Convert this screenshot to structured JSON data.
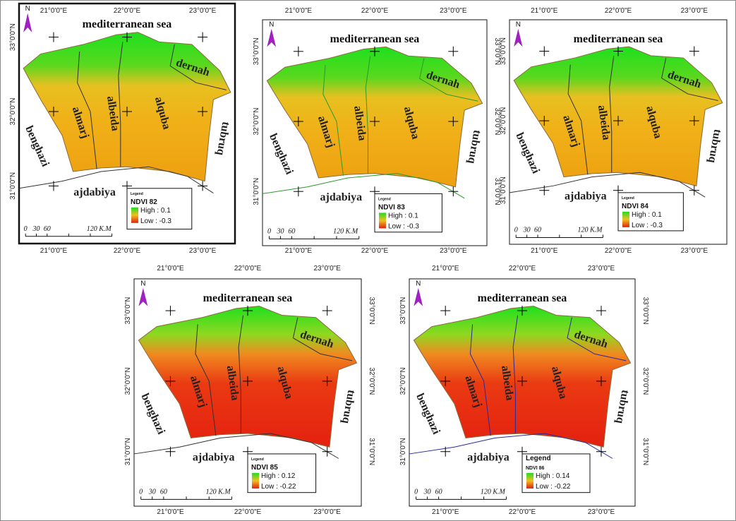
{
  "north": "N",
  "panels": [
    {
      "lon_top": [
        "21°0'0\"E",
        "22°0'0\"E",
        "23°0'0\"E"
      ],
      "lon_bottom": [
        "21°0'0\"E",
        "22°0'0\"E",
        "23°0'0\"E"
      ],
      "lat_left": [
        "33°0'0\"N",
        "32°0'0\"N",
        "31°0'0\"N"
      ],
      "lat_right": [],
      "sea": "mediterranean  sea",
      "regions": [
        "almarj",
        "albeida",
        "alquba",
        "dernah",
        "benghazi",
        "tubruq",
        "ajdabiya"
      ],
      "legend": {
        "heading": "Legend",
        "title": "NDVI 82",
        "high": "High : 0.1",
        "low": "Low : -0.3"
      },
      "scale": [
        "0",
        "30",
        "60",
        "120 K.M"
      ],
      "palette": "orange",
      "label_color": "#222222"
    },
    {
      "lon_top": [
        "21°0'0\"E",
        "22°0'0\"E",
        "23°0'0\"E"
      ],
      "lon_bottom": [
        "21°0'0\"E",
        "22°0'0\"E",
        "23°0'0\"E"
      ],
      "lat_left": [
        "33°0'0\"N",
        "32°0'0\"N",
        "31°0'0\"N"
      ],
      "lat_right": [
        "33°0'0\"N",
        "32°0'0\"N",
        "31°0'0\"N"
      ],
      "sea": "mediterranean  sea",
      "regions": [
        "almarj",
        "albeida",
        "alquba",
        "dernah",
        "benghazi",
        "tubruq",
        "ajdabiya"
      ],
      "legend": {
        "heading": "Legend",
        "title": "NDVI 83",
        "high": "High : 0.1",
        "low": "Low : -0.3"
      },
      "scale": [
        "0",
        "30",
        "60",
        "120 K.M"
      ],
      "palette": "orange",
      "label_color": "#e02020"
    },
    {
      "lon_top": [
        "21°0'0\"E",
        "22°0'0\"E",
        "23°0'0\"E"
      ],
      "lon_bottom": [
        "21°0'0\"E",
        "22°0'0\"E",
        "23°0'0\"E"
      ],
      "lat_left": [
        "33°0'0\"N",
        "32°0'0\"N",
        "31°0'0\"N"
      ],
      "lat_right": [],
      "sea": "mediterranean  sea",
      "regions": [
        "almarj",
        "albeida",
        "alquba",
        "dernah",
        "benghazi",
        "tubruq",
        "ajdabiya"
      ],
      "legend": {
        "heading": "Legend",
        "title": "NDVI 84",
        "high": "High : 0.1",
        "low": "Low : -0.3"
      },
      "scale": [
        "0",
        "30",
        "60",
        "120 K.M"
      ],
      "palette": "orange",
      "label_color": "#222222"
    },
    {
      "lon_top": [
        "21°0'0\"E",
        "22°0'0\"E",
        "23°0'0\"E"
      ],
      "lon_bottom": [
        "21°0'0\"E",
        "22°0'0\"E",
        "23°0'0\"E"
      ],
      "lat_left": [
        "33°0'0\"N",
        "32°0'0\"N",
        "31°0'0\"N"
      ],
      "lat_right": [
        "33°0'0\"N",
        "32°0'0\"N",
        "31°0'0\"N"
      ],
      "sea": "mediterranean  sea",
      "regions": [
        "almarj",
        "albeida",
        "alquba",
        "dernah",
        "benghazi",
        "tubruq",
        "ajdabiya"
      ],
      "legend": {
        "heading": "Legend",
        "title": "NDVI 85",
        "high": "High : 0.12",
        "low": "Low : -0.22"
      },
      "scale": [
        "0",
        "30",
        "60",
        "120 K.M"
      ],
      "palette": "red",
      "label_color": "#222222"
    },
    {
      "lon_top": [
        "21°0'0\"E",
        "22°0'0\"E",
        "23°0'0\"E"
      ],
      "lon_bottom": [
        "21°0'0\"E",
        "22°0'0\"E",
        "23°0'0\"E"
      ],
      "lat_left": [
        "33°0'0\"N",
        "32°0'0\"N",
        "31°0'0\"N"
      ],
      "lat_right": [
        "33°0'0\"N",
        "32°0'0\"N",
        "31°0'0\"N"
      ],
      "sea": "mediterranean  sea",
      "regions": [
        "almarj",
        "albeida",
        "alquba",
        "dernah",
        "benghazi",
        "tubruq",
        "ajdabiya"
      ],
      "legend": {
        "heading": "Legend",
        "title": "NDVI 86",
        "high": "High : 0.14",
        "low": "Low : -0.22"
      },
      "scale": [
        "0",
        "30",
        "60",
        "120 K.M"
      ],
      "palette": "red",
      "label_color": "#222222"
    }
  ]
}
